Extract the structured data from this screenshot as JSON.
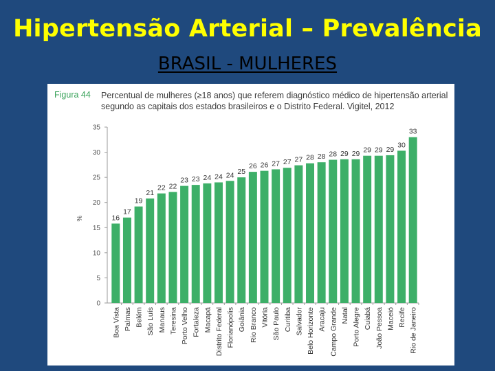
{
  "slide": {
    "title": "Hipertensão Arterial – Prevalência",
    "subtitle": "BRASIL - MULHERES"
  },
  "figure": {
    "label": "Figura 44",
    "caption": "Percentual de mulheres (≥18 anos) que referem diagnóstico médico de hipertensão arterial segundo as capitais dos estados brasileiros e o Distrito Federal. Vigitel, 2012"
  },
  "colors": {
    "bar": "#3daf68",
    "title": "#ffff00",
    "background": "#1f497d",
    "figure_label": "#3aa35b"
  },
  "chart_data": {
    "type": "bar",
    "title": "Percentual de mulheres (≥18 anos) que referem diagnóstico médico de hipertensão arterial segundo as capitais dos estados brasileiros e o Distrito Federal. Vigitel, 2012",
    "xlabel": "",
    "ylabel": "%",
    "ylim": [
      0,
      35
    ],
    "yticks": [
      0,
      5,
      10,
      15,
      20,
      25,
      30,
      35
    ],
    "grid": false,
    "categories": [
      "Boa Vista",
      "Palmas",
      "Belém",
      "São Luís",
      "Manaus",
      "Teresina",
      "Porto Velho",
      "Fortaleza",
      "Macapá",
      "Distrito Federal",
      "Florianópolis",
      "Goiânia",
      "Rio Branco",
      "Vitória",
      "São Paulo",
      "Curitiba",
      "Salvador",
      "Belo Horizonte",
      "Aracaju",
      "Campo Grande",
      "Natal",
      "Porto Alegre",
      "Cuiabá",
      "João Pessoa",
      "Maceió",
      "Recife",
      "Rio de Janeiro"
    ],
    "values": [
      16,
      17,
      19,
      21,
      22,
      22,
      23,
      23,
      24,
      24,
      24,
      25,
      26,
      26,
      27,
      27,
      27,
      28,
      28,
      28,
      29,
      29,
      29,
      29,
      29,
      30,
      33
    ],
    "bar_heights": [
      15.8,
      17.0,
      19.2,
      20.8,
      21.8,
      22.1,
      23.3,
      23.5,
      23.8,
      24.0,
      24.3,
      25.0,
      26.1,
      26.3,
      26.6,
      26.9,
      27.4,
      27.8,
      28.0,
      28.5,
      28.6,
      28.6,
      29.3,
      29.3,
      29.4,
      30.3,
      33.0
    ]
  }
}
